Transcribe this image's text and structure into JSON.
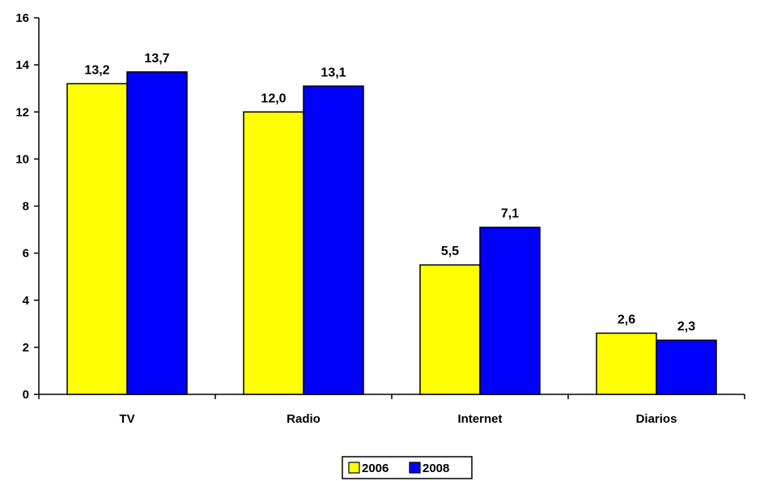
{
  "chart_data": {
    "type": "bar",
    "categories": [
      "TV",
      "Radio",
      "Internet",
      "Diarios"
    ],
    "series": [
      {
        "name": "2006",
        "color": "#ffff00",
        "values": [
          13.2,
          12.0,
          5.5,
          2.6
        ],
        "labels": [
          "13,2",
          "12,0",
          "5,5",
          "2,6"
        ]
      },
      {
        "name": "2008",
        "color": "#0000ff",
        "values": [
          13.7,
          13.1,
          7.1,
          2.3
        ],
        "labels": [
          "13,7",
          "13,1",
          "7,1",
          "2,3"
        ]
      }
    ],
    "title": "",
    "xlabel": "",
    "ylabel": "",
    "ylim": [
      0,
      16
    ],
    "yticks": [
      0,
      2,
      4,
      6,
      8,
      10,
      12,
      14,
      16
    ],
    "grid": false,
    "legend_position": "bottom-center",
    "data_labels": true
  }
}
